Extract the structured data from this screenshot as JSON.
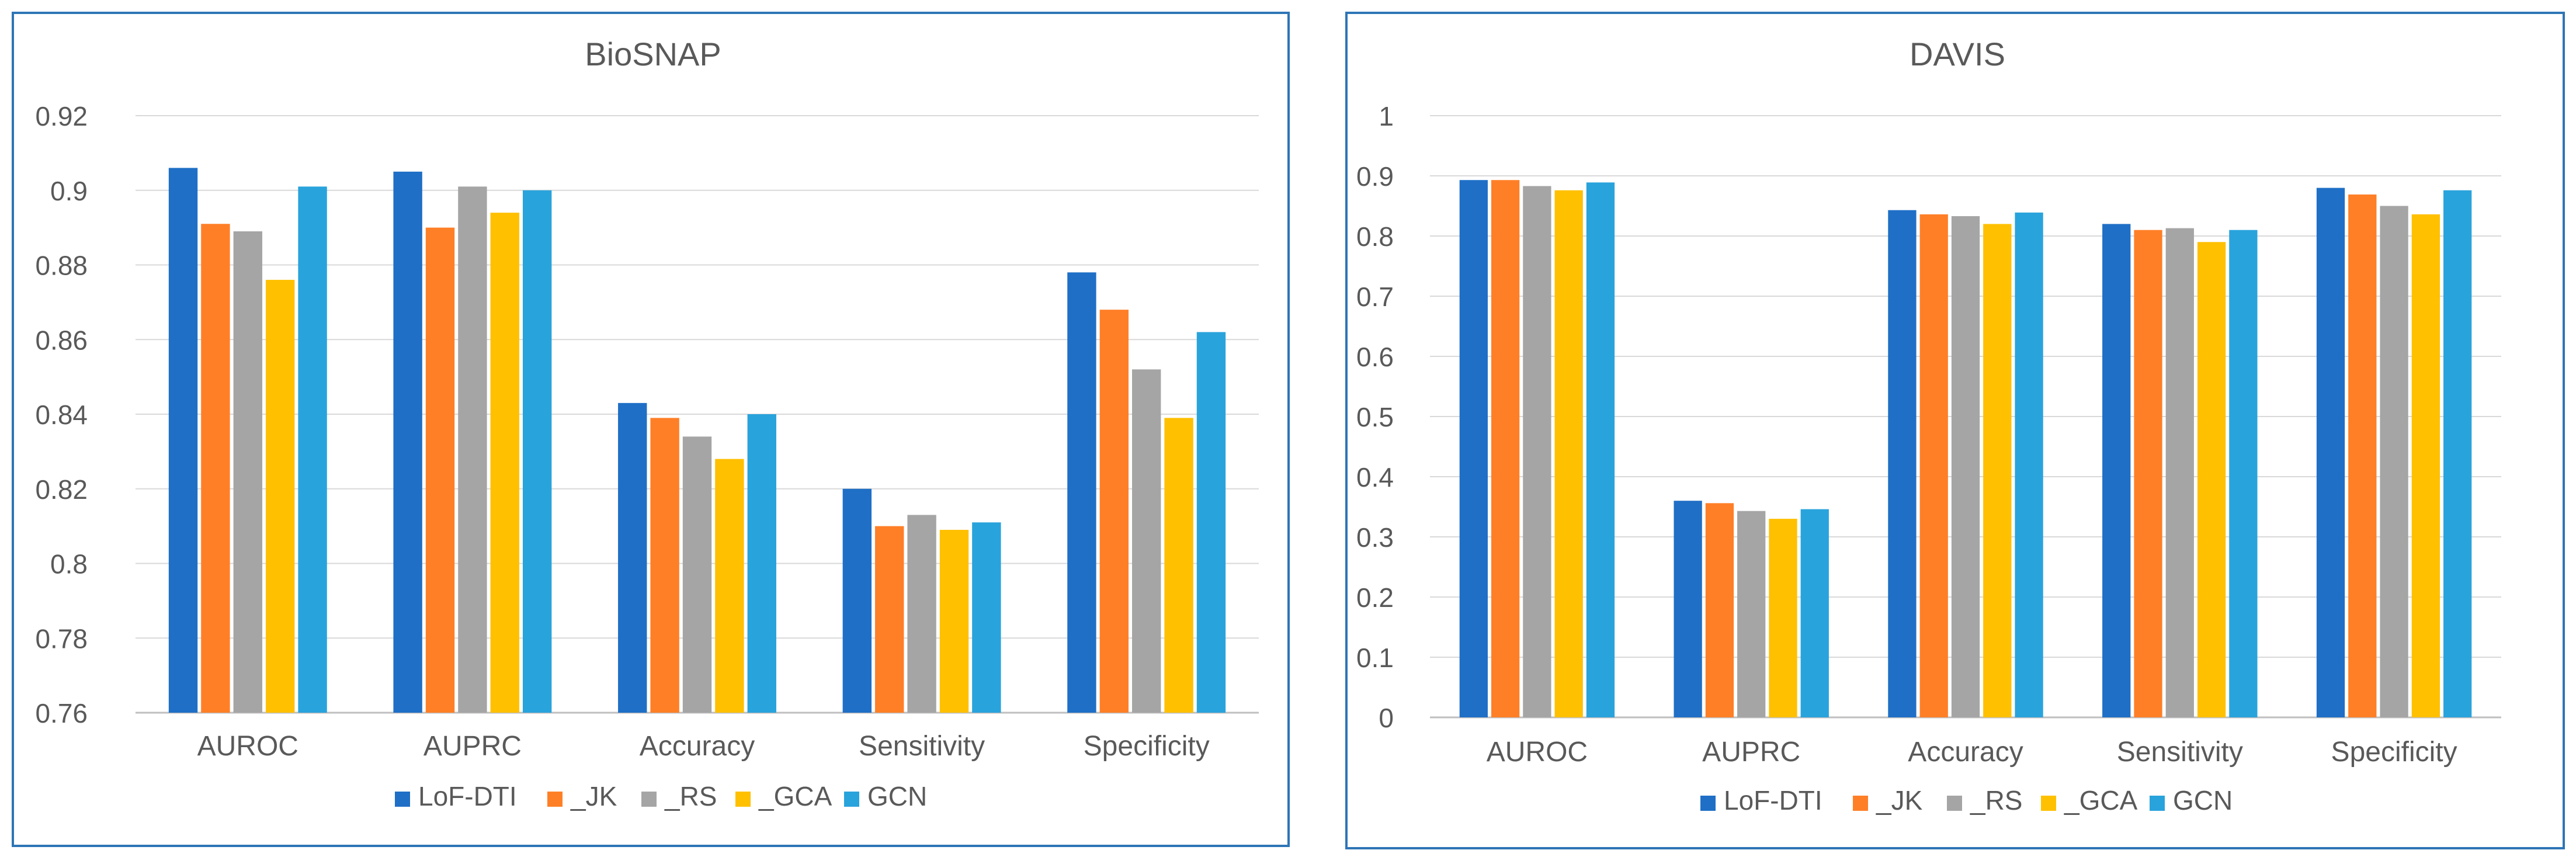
{
  "chart_data": [
    {
      "type": "bar",
      "title": "BioSNAP",
      "xlabel": "",
      "ylabel": "",
      "ylim": [
        0.76,
        0.92
      ],
      "yticks": [
        "0.76",
        "0.78",
        "0.8",
        "0.82",
        "0.84",
        "0.86",
        "0.88",
        "0.9",
        "0.92"
      ],
      "ytick_values": [
        0.76,
        0.78,
        0.8,
        0.82,
        0.84,
        0.86,
        0.88,
        0.9,
        0.92
      ],
      "grid": true,
      "legend_position": "bottom",
      "categories": [
        "AUROC",
        "AUPRC",
        "Accuracy",
        "Sensitivity",
        "Specificity"
      ],
      "series": [
        {
          "name": "LoF-DTI",
          "color": "#1f6fc6",
          "values": [
            0.906,
            0.905,
            0.843,
            0.82,
            0.878
          ]
        },
        {
          "name": "_JK",
          "color": "#ff7f27",
          "values": [
            0.891,
            0.89,
            0.839,
            0.81,
            0.868
          ]
        },
        {
          "name": "_RS",
          "color": "#a5a5a5",
          "values": [
            0.889,
            0.901,
            0.834,
            0.813,
            0.852
          ]
        },
        {
          "name": "_GCA",
          "color": "#ffc000",
          "values": [
            0.876,
            0.894,
            0.828,
            0.809,
            0.839
          ]
        },
        {
          "name": "GCN",
          "color": "#29a3dc",
          "values": [
            0.901,
            0.9,
            0.84,
            0.811,
            0.862
          ]
        }
      ]
    },
    {
      "type": "bar",
      "title": "DAVIS",
      "xlabel": "",
      "ylabel": "",
      "ylim": [
        0,
        1
      ],
      "yticks": [
        "0",
        "0.1",
        "0.2",
        "0.3",
        "0.4",
        "0.5",
        "0.6",
        "0.7",
        "0.8",
        "0.9",
        "1"
      ],
      "ytick_values": [
        0,
        0.1,
        0.2,
        0.3,
        0.4,
        0.5,
        0.6,
        0.7,
        0.8,
        0.9,
        1
      ],
      "grid": true,
      "legend_position": "bottom",
      "categories": [
        "AUROC",
        "AUPRC",
        "Accuracy",
        "Sensitivity",
        "Specificity"
      ],
      "series": [
        {
          "name": "LoF-DTI",
          "color": "#1f6fc6",
          "values": [
            0.893,
            0.36,
            0.843,
            0.82,
            0.88
          ]
        },
        {
          "name": "_JK",
          "color": "#ff7f27",
          "values": [
            0.893,
            0.356,
            0.836,
            0.81,
            0.869
          ]
        },
        {
          "name": "_RS",
          "color": "#a5a5a5",
          "values": [
            0.883,
            0.343,
            0.833,
            0.813,
            0.85
          ]
        },
        {
          "name": "_GCA",
          "color": "#ffc000",
          "values": [
            0.876,
            0.33,
            0.82,
            0.79,
            0.836
          ]
        },
        {
          "name": "GCN",
          "color": "#29a3dc",
          "values": [
            0.889,
            0.346,
            0.839,
            0.81,
            0.876
          ]
        }
      ]
    }
  ]
}
